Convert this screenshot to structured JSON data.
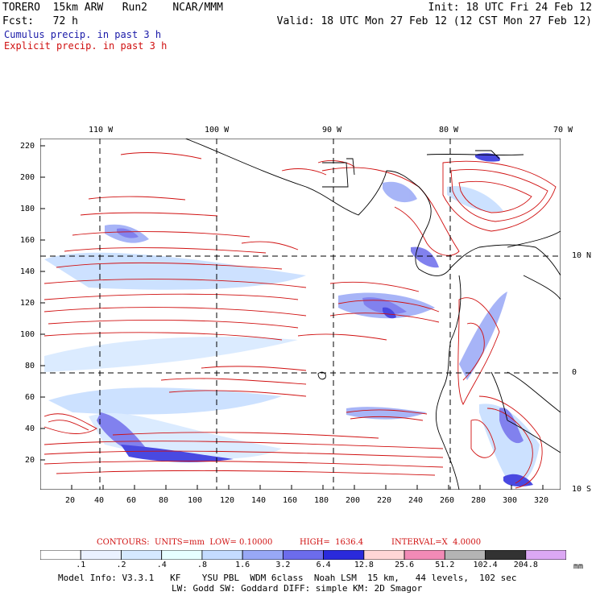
{
  "header": {
    "model_line": "TORERO  15km ARW   Run2    NCAR/MMM",
    "init": "Init: 18 UTC Fri 24 Feb 12",
    "fcst": "Fcst:   72 h",
    "valid": "Valid: 18 UTC Mon 27 Feb 12 (12 CST Mon 27 Feb 12)",
    "cumulus_label": "Cumulus precip. in past 3 h",
    "explicit_label": "Explicit precip. in past 3 h"
  },
  "colors": {
    "cumulus": "#1a1aa8",
    "explicit": "#d01010",
    "coast": "#000000"
  },
  "map": {
    "top_lon_labels": [
      "110 W",
      "100 W",
      "90 W",
      "80 W",
      "70 W"
    ],
    "right_lat_labels": [
      "10 N",
      "0",
      "10 S"
    ],
    "y_ticks": [
      "220",
      "200",
      "180",
      "160",
      "140",
      "120",
      "100",
      "80",
      "60",
      "40",
      "20"
    ],
    "x_ticks": [
      "20",
      "40",
      "60",
      "80",
      "100",
      "120",
      "140",
      "160",
      "180",
      "200",
      "220",
      "240",
      "260",
      "280",
      "300",
      "320"
    ]
  },
  "contour_info": {
    "units": "CONTOURS:  UNITS=mm  LOW= 0.10000",
    "high": "HIGH=  1636.4",
    "interval": "INTERVAL=X  4.0000"
  },
  "legend": {
    "thresholds": [
      ".1",
      ".2",
      ".4",
      ".8",
      "1.6",
      "3.2",
      "6.4",
      "12.8",
      "25.6",
      "51.2",
      "102.4",
      "204.8"
    ],
    "colors": [
      "#ffffff",
      "#eaf1ff",
      "#d5e8ff",
      "#e6ffff",
      "#c4dcff",
      "#98a8f6",
      "#6c6cec",
      "#2a2adc",
      "#ffd6d6",
      "#f28ab6",
      "#b4b4b4",
      "#323232",
      "#dca8f4"
    ],
    "unit": "mm"
  },
  "model_info": {
    "line1": "Model Info: V3.3.1   KF    YSU PBL  WDM 6class  Noah LSM  15 km,   44 levels,  102 sec",
    "line2": "LW: Godd SW: Goddard DIFF: simple KM: 2D Smagor"
  }
}
